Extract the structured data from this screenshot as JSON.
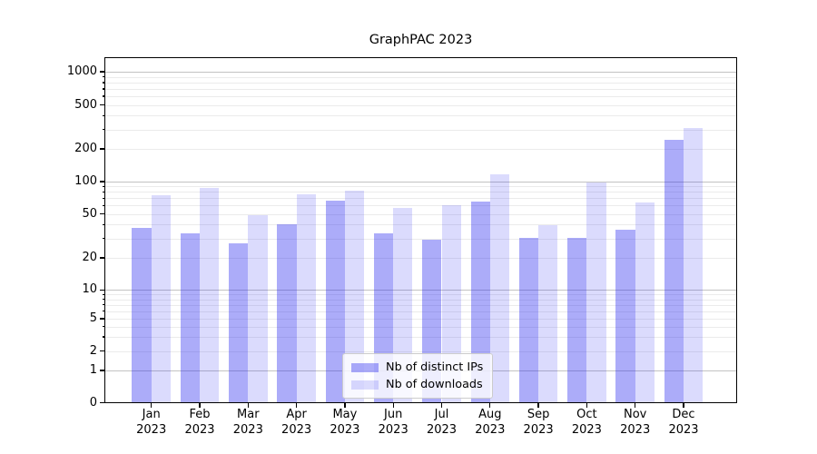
{
  "chart_data": {
    "type": "bar",
    "title": "GraphPAC 2023",
    "scale": "symlog",
    "grid": "on",
    "legend_position": "lower center",
    "categories": [
      "Jan 2023",
      "Feb 2023",
      "Mar 2023",
      "Apr 2023",
      "May 2023",
      "Jun 2023",
      "Jul 2023",
      "Aug 2023",
      "Sep 2023",
      "Oct 2023",
      "Nov 2023",
      "Dec 2023"
    ],
    "series": [
      {
        "name": "Nb of distinct IPs",
        "color": "rgba(30,30,240,0.37)",
        "values": [
          37,
          33,
          27,
          40,
          66,
          33,
          29,
          65,
          30,
          30,
          36,
          240
        ]
      },
      {
        "name": "Nb of downloads",
        "color": "rgba(30,30,240,0.16)",
        "values": [
          74,
          86,
          48,
          76,
          82,
          56,
          60,
          115,
          39,
          97,
          64,
          305
        ]
      }
    ],
    "y_ticks": [
      1000,
      500,
      200,
      100,
      50,
      20,
      10,
      5,
      2,
      1,
      0
    ],
    "ylim": [
      0,
      1400
    ],
    "xlabel": "",
    "ylabel": ""
  }
}
